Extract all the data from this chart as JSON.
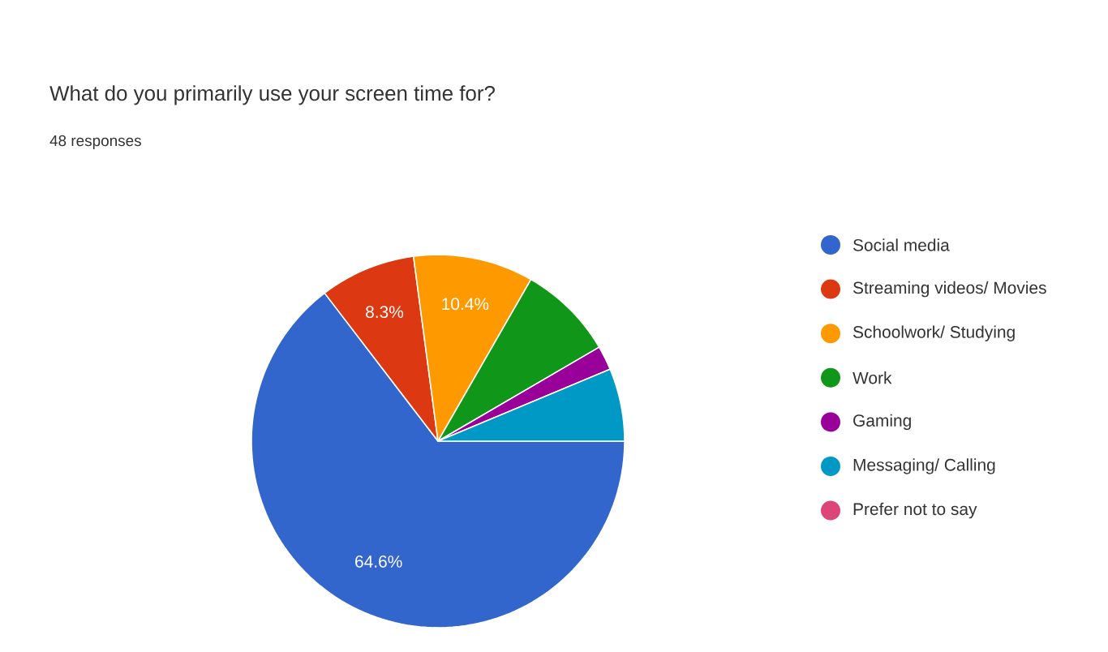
{
  "chart_data": {
    "type": "pie",
    "title": "What do you primarily use your screen time for?",
    "subtitle": "48 responses",
    "categories": [
      "Social media",
      "Streaming videos/ Movies",
      "Schoolwork/ Studying",
      "Work",
      "Gaming",
      "Messaging/ Calling",
      "Prefer not to say"
    ],
    "values": [
      64.6,
      8.3,
      10.4,
      8.3,
      2.1,
      6.3,
      0
    ],
    "colors": [
      "#3366cc",
      "#dc3912",
      "#ff9900",
      "#109618",
      "#990099",
      "#0099c6",
      "#dd4477"
    ],
    "value_labels": [
      "64.6%",
      "8.3%",
      "10.4%",
      null,
      null,
      null,
      null
    ],
    "legend": "right"
  }
}
